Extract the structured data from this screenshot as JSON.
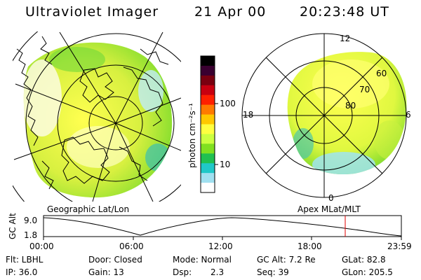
{
  "header": {
    "title": "Ultraviolet Imager",
    "date": "21 Apr 00",
    "time": "20:23:48 UT"
  },
  "maps": {
    "geographic_label": "Geographic Lat/Lon",
    "apex_label": "Apex MLat/MLT"
  },
  "colorbar": {
    "unit_label": "photon cm⁻²s⁻¹",
    "ticks": [
      "100",
      "10"
    ],
    "colors": [
      "#000000",
      "#3a0030",
      "#7a0010",
      "#c80010",
      "#ff2000",
      "#ff7a00",
      "#ffc800",
      "#ffff40",
      "#ccff40",
      "#80e020",
      "#20c050",
      "#20c8c8",
      "#a0e0f0",
      "#ffffff"
    ]
  },
  "polar": {
    "mlt_labels": {
      "top": "12",
      "left": "18",
      "right": "6",
      "bottom": "0"
    },
    "lat_labels": [
      "60",
      "70",
      "80"
    ]
  },
  "orbit": {
    "ylabel": "GC Alt",
    "ytick_top": "9.0",
    "ytick_bottom": "1.8",
    "xticks": [
      "00:00",
      "06:00",
      "12:00",
      "18:00",
      "23:59"
    ],
    "marker_color": "#e00000"
  },
  "info": {
    "flt": "Flt: LBHL",
    "ip": "IP: 36.0",
    "door": "Door: Closed",
    "gain": "Gain: 13",
    "mode": "Mode: Normal",
    "dsp_label": "Dsp:",
    "dsp_value": "2.3",
    "gcalt": "GC Alt: 7.2 Re",
    "seq": "Seq: 39",
    "glat": "GLat: 82.8",
    "glon": "GLon: 205.5"
  }
}
